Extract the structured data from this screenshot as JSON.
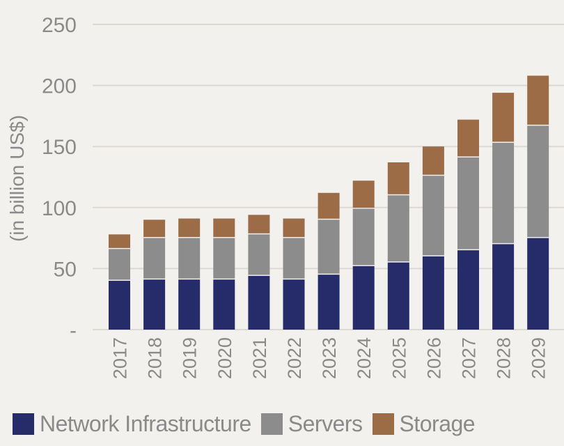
{
  "chart_data": {
    "type": "bar",
    "stacked": true,
    "title": "",
    "xlabel": "",
    "ylabel": "(in billion US$)",
    "ylim": [
      0,
      250
    ],
    "yticks": [
      0,
      50,
      100,
      150,
      200,
      250
    ],
    "ytick_labels": [
      "-",
      "50",
      "100",
      "150",
      "200",
      "250"
    ],
    "grid": true,
    "legend_position": "bottom",
    "categories": [
      "2017",
      "2018",
      "2019",
      "2020",
      "2021",
      "2022",
      "2023",
      "2024",
      "2025",
      "2026",
      "2027",
      "2028",
      "2029"
    ],
    "series": [
      {
        "name": "Network Infrastructure",
        "color": "#262c69",
        "values": [
          40,
          41,
          41,
          41,
          44,
          41,
          45,
          52,
          55,
          60,
          65,
          70,
          75
        ]
      },
      {
        "name": "Servers",
        "color": "#8b8c8b",
        "values": [
          26,
          34,
          34,
          34,
          34,
          34,
          45,
          47,
          55,
          66,
          76,
          83,
          92
        ]
      },
      {
        "name": "Storage",
        "color": "#9c6c47",
        "values": [
          12,
          15,
          16,
          16,
          16,
          16,
          22,
          23,
          27,
          24,
          31,
          41,
          41
        ]
      }
    ]
  }
}
